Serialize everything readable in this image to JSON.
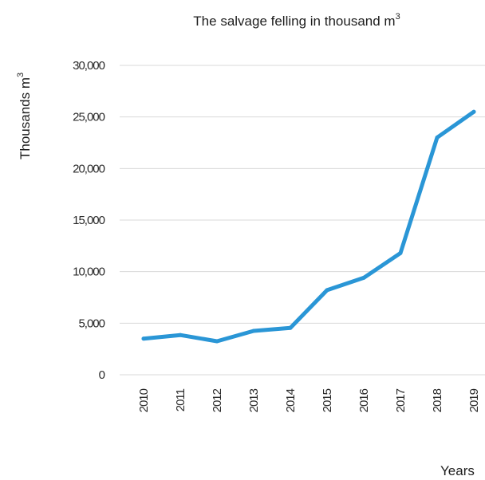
{
  "chart_data": {
    "type": "line",
    "title": "The salvage felling in thousand m",
    "title_sup": "3",
    "ylabel": "Thousands m",
    "ylabel_sup": "3",
    "xlabel": "Years",
    "categories": [
      "2010",
      "2011",
      "2012",
      "2013",
      "2014",
      "2015",
      "2016",
      "2017",
      "2018",
      "2019"
    ],
    "series": [
      {
        "values": [
          3500,
          3850,
          3250,
          4250,
          4550,
          8200,
          9400,
          11800,
          23000,
          25500
        ]
      }
    ],
    "ylim": [
      0,
      30000
    ],
    "yticks": [
      {
        "value": 0,
        "label": "0"
      },
      {
        "value": 5000,
        "label": "5,000"
      },
      {
        "value": 10000,
        "label": "10,000"
      },
      {
        "value": 15000,
        "label": "15,000"
      },
      {
        "value": 20000,
        "label": "20,000"
      },
      {
        "value": 25000,
        "label": "25,000"
      },
      {
        "value": 30000,
        "label": "30,000"
      }
    ],
    "grid": true,
    "line_color": "#2a96d6"
  }
}
